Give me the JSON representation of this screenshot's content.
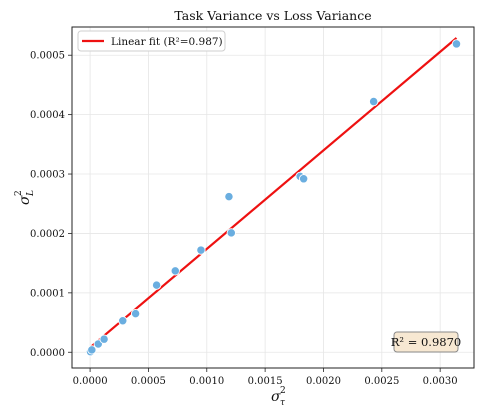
{
  "chart_data": {
    "type": "scatter",
    "title": "Task Variance vs Loss Variance",
    "xlabel": "σ²_τ",
    "ylabel": "σ²_L",
    "xlim": [
      -0.000155,
      0.00329
    ],
    "ylim": [
      -2.65e-05,
      0.0005475
    ],
    "xticks": [
      {
        "value": 0.0,
        "label": "0.0000"
      },
      {
        "value": 0.0005,
        "label": "0.0005"
      },
      {
        "value": 0.001,
        "label": "0.0010"
      },
      {
        "value": 0.0015,
        "label": "0.0015"
      },
      {
        "value": 0.002,
        "label": "0.0020"
      },
      {
        "value": 0.0025,
        "label": "0.0025"
      },
      {
        "value": 0.003,
        "label": "0.0030"
      }
    ],
    "yticks": [
      {
        "value": 0.0,
        "label": "0.0000"
      },
      {
        "value": 0.0001,
        "label": "0.0001"
      },
      {
        "value": 0.0002,
        "label": "0.0002"
      },
      {
        "value": 0.0003,
        "label": "0.0003"
      },
      {
        "value": 0.0004,
        "label": "0.0004"
      },
      {
        "value": 0.0005,
        "label": "0.0005"
      }
    ],
    "grid": true,
    "legend": {
      "position": "top-left",
      "label": "Linear fit (R²=0.987)"
    },
    "annotation": {
      "text": "R² = 0.9870",
      "position": "bottom-right"
    },
    "colors": {
      "points": "#6aaee0",
      "fit": "#ee1111",
      "annotation_bg": "#f7e8d2",
      "annotation_border": "#8a8a8a"
    },
    "series": [
      {
        "type": "scatter",
        "x": [
          3e-06,
          1.5e-05,
          7e-05,
          0.00012,
          0.00028,
          0.00039,
          0.00057,
          0.00073,
          0.00095,
          0.00119,
          0.00121,
          0.0018,
          0.00183,
          0.00243,
          0.00314
        ],
        "y": [
          1e-06,
          4e-06,
          1.4e-05,
          2.2e-05,
          5.3e-05,
          6.5e-05,
          0.000113,
          0.000137,
          0.000172,
          0.000262,
          0.000201,
          0.000296,
          0.000292,
          0.000422,
          0.000519
        ]
      },
      {
        "type": "line",
        "name": "Linear fit (R²=0.987)",
        "x": [
          3e-06,
          0.00314
        ],
        "y": [
          8.5e-06,
          0.000529
        ]
      }
    ]
  }
}
